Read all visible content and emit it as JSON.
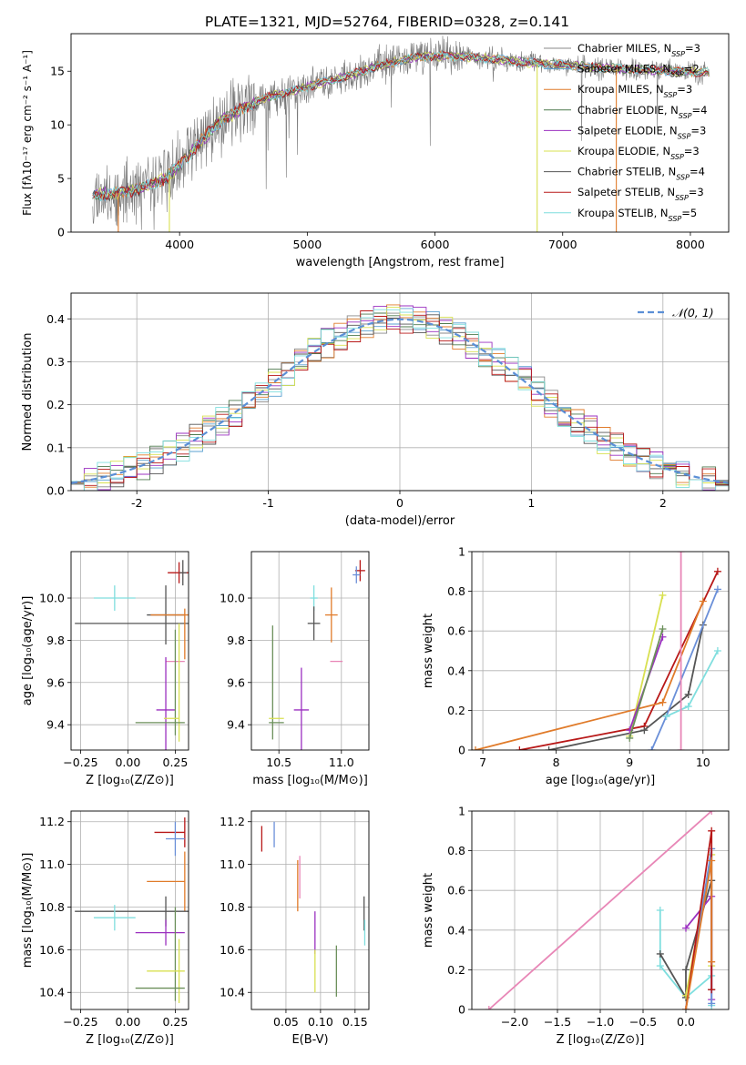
{
  "figure": {
    "title": "PLATE=1321, MJD=52764, FIBERID=0328, z=0.141"
  },
  "colors": {
    "chabrier_miles": "#8a8a8a",
    "salpeter_miles": "#5aa0d0",
    "kroupa_miles": "#e07b2a",
    "chabrier_elodie": "#4f7a4f",
    "salpeter_elodie": "#9b30c0",
    "kroupa_elodie": "#d8e050",
    "chabrier_stelib": "#555555",
    "salpeter_stelib": "#b81818",
    "kroupa_stelib": "#7fdede",
    "pink": "#e887b7",
    "blue": "#6a8fd8",
    "green": "#6b8f5a"
  },
  "chart_data": [
    {
      "id": "spectrum",
      "type": "line",
      "xlabel": "wavelength [Angstrom, rest frame]",
      "ylabel": "Flux [fλ10⁻¹⁷ erg cm⁻² s⁻¹ A⁻¹]",
      "xlim": [
        3150,
        8300
      ],
      "ylim": [
        0,
        18.5
      ],
      "xticks": [
        4000,
        5000,
        6000,
        7000,
        8000
      ],
      "yticks": [
        0,
        5,
        10,
        15
      ],
      "grid": false,
      "legend_position": "top-right",
      "continuum": {
        "x": [
          3320,
          3500,
          3700,
          3900,
          4000,
          4150,
          4300,
          4500,
          4700,
          4900,
          5100,
          5300,
          5500,
          5700,
          5900,
          6100,
          6300,
          6500,
          6700,
          6900,
          7100,
          7300,
          7500,
          7700,
          7900,
          8150
        ],
        "y": [
          3.5,
          3.6,
          4.1,
          5.1,
          6.2,
          8.3,
          10.2,
          11.6,
          12.6,
          13.2,
          13.9,
          14.5,
          15.3,
          15.9,
          16.4,
          16.4,
          16.3,
          16.1,
          15.8,
          15.7,
          15.5,
          15.3,
          15.2,
          15.1,
          15.0,
          14.9
        ]
      },
      "series": [
        {
          "name": "Chabrier MILES, N$_{SSP}$=3",
          "color": "#8a8a8a"
        },
        {
          "name": "Salpeter MILES, N$_{SSP}$=2",
          "color": "#5aa0d0"
        },
        {
          "name": "Kroupa MILES, N$_{SSP}$=3",
          "color": "#e07b2a"
        },
        {
          "name": "Chabrier ELODIE, N$_{SSP}$=4",
          "color": "#4f7a4f"
        },
        {
          "name": "Salpeter ELODIE, N$_{SSP}$=3",
          "color": "#9b30c0"
        },
        {
          "name": "Kroupa ELODIE, N$_{SSP}$=3",
          "color": "#d8e050"
        },
        {
          "name": "Chabrier STELIB, N$_{SSP}$=4",
          "color": "#555555"
        },
        {
          "name": "Salpeter STELIB, N$_{SSP}$=3",
          "color": "#b81818"
        },
        {
          "name": "Kroupa STELIB, N$_{SSP}$=5",
          "color": "#7fdede"
        }
      ],
      "drops": [
        {
          "x": 3520,
          "color": "#e07b2a"
        },
        {
          "x": 3920,
          "color": "#d8e050"
        },
        {
          "x": 6800,
          "color": "#d8e050"
        },
        {
          "x": 7420,
          "color": "#e07b2a"
        }
      ]
    },
    {
      "id": "residuals",
      "type": "step",
      "xlabel": "(data-model)/error",
      "ylabel": "Normed distribution",
      "xlim": [
        -2.5,
        2.5
      ],
      "ylim": [
        0,
        0.46
      ],
      "xticks": [
        -2,
        -1,
        0,
        1,
        2
      ],
      "yticks": [
        0.0,
        0.1,
        0.2,
        0.3,
        0.4
      ],
      "grid": true,
      "legend_position": "top-right",
      "gaussian_label": "𝒩(0, 1)",
      "gaussian_color": "#5b8fd6",
      "bin_width": 0.1,
      "bin_start": -2.5
    },
    {
      "id": "age_vs_Z",
      "type": "errorbar",
      "xlabel": "Z [log₁₀(Z/Z⊙)]",
      "ylabel": "age  [log₁₀(age/yr)]",
      "xlim": [
        -0.3,
        0.32
      ],
      "ylim": [
        9.28,
        10.22
      ],
      "xticks": [
        -0.25,
        0.0,
        0.25
      ],
      "xticklabels": [
        "−0.25",
        "0.00",
        "0.25"
      ],
      "yticks": [
        9.4,
        9.6,
        9.8,
        10.0
      ],
      "yticklabels": [
        "9.4",
        "9.6",
        "9.8",
        "10.0"
      ],
      "grid": true,
      "points": [
        {
          "x": 0.27,
          "y": 10.12,
          "xerr": 0.06,
          "yerr": 0.05,
          "color": "#b81818"
        },
        {
          "x": 0.29,
          "y": 10.12,
          "xerr": 0.02,
          "yerr": 0.06,
          "color": "#555555"
        },
        {
          "x": -0.07,
          "y": 10.0,
          "xerr": 0.11,
          "yerr": 0.06,
          "color": "#7fdede"
        },
        {
          "x": 0.2,
          "y": 9.92,
          "xerr": 0.1,
          "yerr": 0.14,
          "color": "#555555"
        },
        {
          "x": 0.12,
          "y": 9.88,
          "xerr": 0.4,
          "yerr": 0.0,
          "color": "#555555"
        },
        {
          "x": 0.22,
          "y": 9.92,
          "xerr": 0.1,
          "yerr": 0.0,
          "color": "#e07b2a"
        },
        {
          "x": 0.3,
          "y": 9.83,
          "xerr": 0.0,
          "yerr": 0.12,
          "color": "#e07b2a"
        },
        {
          "x": 0.25,
          "y": 9.7,
          "xerr": 0.05,
          "yerr": 0.0,
          "color": "#e887b7"
        },
        {
          "x": 0.2,
          "y": 9.47,
          "xerr": 0.05,
          "yerr": 0.25,
          "color": "#9b30c0"
        },
        {
          "x": 0.25,
          "y": 9.6,
          "xerr": 0.0,
          "yerr": 0.25,
          "color": "#6b8f5a"
        },
        {
          "x": 0.27,
          "y": 9.6,
          "xerr": 0.0,
          "yerr": 0.28,
          "color": "#d8e050"
        },
        {
          "x": 0.23,
          "y": 9.43,
          "xerr": 0.04,
          "yerr": 0.0,
          "color": "#d8e050"
        },
        {
          "x": 0.17,
          "y": 9.41,
          "xerr": 0.13,
          "yerr": 0.0,
          "color": "#6b8f5a"
        }
      ]
    },
    {
      "id": "age_vs_mass",
      "type": "errorbar",
      "xlabel": "mass [log₁₀(M/M⊙)]",
      "ylabel": "",
      "xlim": [
        10.28,
        11.22
      ],
      "ylim": [
        9.28,
        10.22
      ],
      "xticks": [
        10.5,
        11.0
      ],
      "xticklabels": [
        "10.5",
        "11.0"
      ],
      "yticks": [
        9.4,
        9.6,
        9.8,
        10.0
      ],
      "yticklabels": [
        "9.4",
        "9.6",
        "9.8",
        "10.0"
      ],
      "grid": true,
      "points": [
        {
          "x": 11.15,
          "y": 10.13,
          "xerr": 0.04,
          "yerr": 0.05,
          "color": "#b81818"
        },
        {
          "x": 11.12,
          "y": 10.11,
          "xerr": 0.03,
          "yerr": 0.04,
          "color": "#6a8fd8"
        },
        {
          "x": 10.78,
          "y": 10.0,
          "xerr": 0.03,
          "yerr": 0.06,
          "color": "#7fdede"
        },
        {
          "x": 10.78,
          "y": 9.88,
          "xerr": 0.05,
          "yerr": 0.08,
          "color": "#555555"
        },
        {
          "x": 10.92,
          "y": 9.92,
          "xerr": 0.05,
          "yerr": 0.13,
          "color": "#e07b2a"
        },
        {
          "x": 10.96,
          "y": 9.7,
          "xerr": 0.05,
          "yerr": 0.0,
          "color": "#e887b7"
        },
        {
          "x": 10.68,
          "y": 9.47,
          "xerr": 0.06,
          "yerr": 0.2,
          "color": "#9b30c0"
        },
        {
          "x": 10.45,
          "y": 9.6,
          "xerr": 0.0,
          "yerr": 0.27,
          "color": "#6b8f5a"
        },
        {
          "x": 10.48,
          "y": 9.43,
          "xerr": 0.06,
          "yerr": 0.0,
          "color": "#d8e050"
        },
        {
          "x": 10.48,
          "y": 9.41,
          "xerr": 0.06,
          "yerr": 0.0,
          "color": "#6b8f5a"
        }
      ]
    },
    {
      "id": "massweight_vs_age",
      "type": "line",
      "xlabel": "age  [log₁₀(age/yr)]",
      "ylabel": "mass weight",
      "xlim": [
        6.85,
        10.35
      ],
      "ylim": [
        0,
        1.0
      ],
      "xticks": [
        7,
        8,
        9,
        10
      ],
      "yticks": [
        0.0,
        0.2,
        0.4,
        0.6,
        0.8,
        1.0
      ],
      "grid": true,
      "series": [
        {
          "name": "",
          "color": "#b81818",
          "x": [
            7.5,
            9.2,
            10.2
          ],
          "y": [
            0.0,
            0.12,
            0.9
          ]
        },
        {
          "name": "",
          "color": "#e07b2a",
          "x": [
            6.9,
            9.45,
            10.0
          ],
          "y": [
            0.0,
            0.24,
            0.75
          ]
        },
        {
          "name": "",
          "color": "#555555",
          "x": [
            7.9,
            9.2,
            9.8,
            10.0
          ],
          "y": [
            0.0,
            0.1,
            0.28,
            0.63
          ]
        },
        {
          "name": "",
          "color": "#6a8fd8",
          "x": [
            9.3,
            9.5,
            10.2
          ],
          "y": [
            0.0,
            0.17,
            0.81
          ]
        },
        {
          "name": "",
          "color": "#7fdede",
          "x": [
            9.5,
            9.8,
            10.2
          ],
          "y": [
            0.17,
            0.22,
            0.5
          ]
        },
        {
          "name": "",
          "color": "#d8e050",
          "x": [
            9.0,
            9.45
          ],
          "y": [
            0.07,
            0.78
          ]
        },
        {
          "name": "",
          "color": "#9b30c0",
          "x": [
            9.0,
            9.45
          ],
          "y": [
            0.1,
            0.57
          ]
        },
        {
          "name": "",
          "color": "#6b8f5a",
          "x": [
            9.0,
            9.45
          ],
          "y": [
            0.06,
            0.61
          ]
        },
        {
          "name": "",
          "color": "#e887b7",
          "x": [
            9.7,
            9.7
          ],
          "y": [
            0.0,
            1.0
          ]
        }
      ]
    },
    {
      "id": "mass_vs_Z",
      "type": "errorbar",
      "xlabel": "Z [log₁₀(Z/Z⊙)]",
      "ylabel": "mass [log₁₀(M/M⊙)]",
      "xlim": [
        -0.3,
        0.32
      ],
      "ylim": [
        10.32,
        11.25
      ],
      "xticks": [
        -0.25,
        0.0,
        0.25
      ],
      "xticklabels": [
        "−0.25",
        "0.00",
        "0.25"
      ],
      "yticks": [
        10.4,
        10.6,
        10.8,
        11.0,
        11.2
      ],
      "yticklabels": [
        "10.4",
        "10.6",
        "10.8",
        "11.0",
        "11.2"
      ],
      "grid": true,
      "points": [
        {
          "x": 0.22,
          "y": 11.15,
          "xerr": 0.08,
          "yerr": 0.0,
          "color": "#b81818"
        },
        {
          "x": 0.3,
          "y": 11.15,
          "xerr": 0.0,
          "yerr": 0.07,
          "color": "#b81818"
        },
        {
          "x": 0.25,
          "y": 11.12,
          "xerr": 0.05,
          "yerr": 0.08,
          "color": "#6a8fd8"
        },
        {
          "x": 0.2,
          "y": 10.92,
          "xerr": 0.1,
          "yerr": 0.0,
          "color": "#e07b2a"
        },
        {
          "x": 0.3,
          "y": 10.92,
          "xerr": 0.0,
          "yerr": 0.14,
          "color": "#e07b2a"
        },
        {
          "x": 0.12,
          "y": 10.78,
          "xerr": 0.4,
          "yerr": 0.0,
          "color": "#555555"
        },
        {
          "x": 0.2,
          "y": 10.78,
          "xerr": 0.0,
          "yerr": 0.07,
          "color": "#555555"
        },
        {
          "x": -0.07,
          "y": 10.75,
          "xerr": 0.11,
          "yerr": 0.06,
          "color": "#7fdede"
        },
        {
          "x": 0.17,
          "y": 10.68,
          "xerr": 0.13,
          "yerr": 0.0,
          "color": "#9b30c0"
        },
        {
          "x": 0.2,
          "y": 10.68,
          "xerr": 0.0,
          "yerr": 0.06,
          "color": "#9b30c0"
        },
        {
          "x": 0.25,
          "y": 10.58,
          "xerr": 0.0,
          "yerr": 0.22,
          "color": "#6b8f5a"
        },
        {
          "x": 0.27,
          "y": 10.5,
          "xerr": 0.0,
          "yerr": 0.15,
          "color": "#d8e050"
        },
        {
          "x": 0.2,
          "y": 10.5,
          "xerr": 0.1,
          "yerr": 0.0,
          "color": "#d8e050"
        },
        {
          "x": 0.17,
          "y": 10.42,
          "xerr": 0.13,
          "yerr": 0.0,
          "color": "#6b8f5a"
        }
      ]
    },
    {
      "id": "mass_vs_EBV",
      "type": "errorbar",
      "xlabel": "E(B-V)",
      "ylabel": "",
      "xlim": [
        0.0,
        0.17
      ],
      "ylim": [
        10.32,
        11.25
      ],
      "xticks": [
        0.05,
        0.1,
        0.15
      ],
      "xticklabels": [
        "0.05",
        "0.10",
        "0.15"
      ],
      "yticks": [
        10.4,
        10.6,
        10.8,
        11.0,
        11.2
      ],
      "yticklabels": [
        "10.4",
        "10.6",
        "10.8",
        "11.0",
        "11.2"
      ],
      "grid": true,
      "points": [
        {
          "x": 0.015,
          "y": 11.12,
          "xerr": 0.0,
          "yerr": 0.06,
          "color": "#b81818"
        },
        {
          "x": 0.033,
          "y": 11.14,
          "xerr": 0.0,
          "yerr": 0.06,
          "color": "#6a8fd8"
        },
        {
          "x": 0.067,
          "y": 10.9,
          "xerr": 0.0,
          "yerr": 0.12,
          "color": "#e07b2a"
        },
        {
          "x": 0.07,
          "y": 10.94,
          "xerr": 0.0,
          "yerr": 0.1,
          "color": "#e887b7"
        },
        {
          "x": 0.092,
          "y": 10.68,
          "xerr": 0.0,
          "yerr": 0.1,
          "color": "#9b30c0"
        },
        {
          "x": 0.092,
          "y": 10.5,
          "xerr": 0.0,
          "yerr": 0.1,
          "color": "#d8e050"
        },
        {
          "x": 0.123,
          "y": 10.5,
          "xerr": 0.0,
          "yerr": 0.12,
          "color": "#6b8f5a"
        },
        {
          "x": 0.163,
          "y": 10.77,
          "xerr": 0.0,
          "yerr": 0.08,
          "color": "#555555"
        },
        {
          "x": 0.164,
          "y": 10.68,
          "xerr": 0.0,
          "yerr": 0.06,
          "color": "#7fdede"
        }
      ]
    },
    {
      "id": "massweight_vs_Z",
      "type": "line",
      "xlabel": "Z [log₁₀(Z/Z⊙)]",
      "ylabel": "mass weight",
      "xlim": [
        -2.5,
        0.5
      ],
      "ylim": [
        0,
        1.0
      ],
      "xticks": [
        -2.0,
        -1.5,
        -1.0,
        -0.5,
        0.0
      ],
      "xticklabels": [
        "−2.0",
        "−1.5",
        "−1.0",
        "−0.5",
        "0.0"
      ],
      "yticks": [
        0.0,
        0.2,
        0.4,
        0.6,
        0.8,
        1.0
      ],
      "grid": true,
      "series": [
        {
          "name": "",
          "color": "#e887b7",
          "x": [
            -2.3,
            0.3
          ],
          "y": [
            0.0,
            1.0
          ]
        },
        {
          "name": "",
          "color": "#7fdede",
          "x": [
            -0.3,
            -0.3,
            0.0,
            0.3,
            0.3
          ],
          "y": [
            0.5,
            0.22,
            0.06,
            0.17,
            0.02
          ]
        },
        {
          "name": "",
          "color": "#555555",
          "x": [
            -0.3,
            0.0,
            0.0,
            0.3,
            0.3
          ],
          "y": [
            0.28,
            0.06,
            0.2,
            0.65,
            0.1
          ]
        },
        {
          "name": "",
          "color": "#d8e050",
          "x": [
            0.0,
            0.3,
            0.3
          ],
          "y": [
            0.07,
            0.78,
            0.22
          ]
        },
        {
          "name": "",
          "color": "#9b30c0",
          "x": [
            0.0,
            0.3,
            0.3
          ],
          "y": [
            0.41,
            0.57,
            0.05
          ]
        },
        {
          "name": "",
          "color": "#6a8fd8",
          "x": [
            0.0,
            0.3,
            0.3
          ],
          "y": [
            0.0,
            0.81,
            0.03
          ]
        },
        {
          "name": "",
          "color": "#b81818",
          "x": [
            0.0,
            0.3,
            0.3
          ],
          "y": [
            0.0,
            0.9,
            0.1
          ]
        },
        {
          "name": "",
          "color": "#e07b2a",
          "x": [
            0.0,
            0.3,
            0.3
          ],
          "y": [
            0.0,
            0.75,
            0.24
          ]
        }
      ]
    }
  ]
}
